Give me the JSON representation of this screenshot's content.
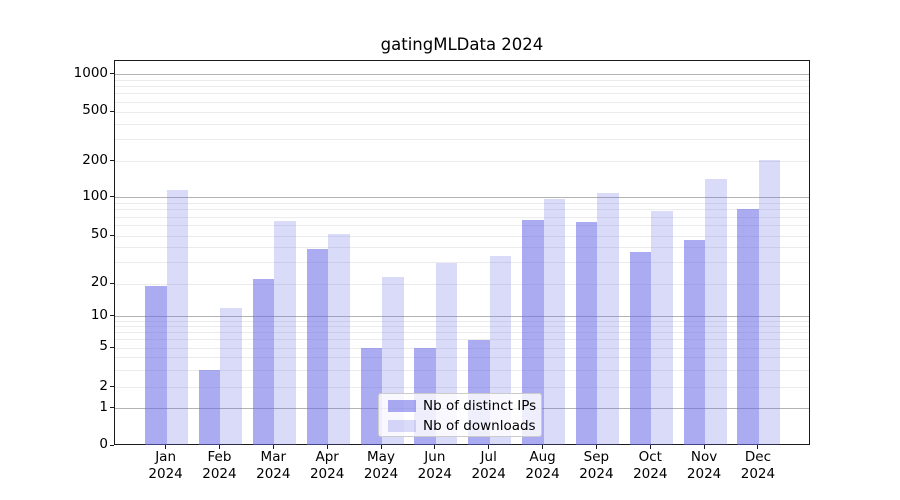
{
  "chart": {
    "title": "gatingMLData 2024"
  },
  "chart_data": {
    "type": "bar",
    "title": "gatingMLData 2024",
    "categories": [
      "Jan",
      "Feb",
      "Mar",
      "Apr",
      "May",
      "Jun",
      "Jul",
      "Aug",
      "Sep",
      "Oct",
      "Nov",
      "Dec"
    ],
    "year_label": "2024",
    "series": [
      {
        "name": "Nb of distinct IPs",
        "values": [
          19,
          3,
          22,
          39,
          5,
          5,
          6,
          67,
          64,
          37,
          46,
          82
        ],
        "color": "#6666e6",
        "alpha": 0.55
      },
      {
        "name": "Nb of downloads",
        "values": [
          115,
          12,
          65,
          52,
          23,
          30,
          34,
          97,
          110,
          79,
          142,
          205
        ],
        "color": "#6666e6",
        "alpha": 0.24
      }
    ],
    "yscale": "symlog",
    "y_ticks": [
      0,
      1,
      2,
      5,
      10,
      20,
      50,
      100,
      200,
      500,
      1000
    ],
    "ylim": [
      0,
      1150
    ],
    "xlabel": "",
    "ylabel": "",
    "grid": "horizontal, major and minor",
    "legend_position": "lower center",
    "colors": {
      "major_gridline": "#b3b3b3",
      "minor_gridline": "#ebebeb",
      "axis": "#1a1a1a",
      "background": "#ffffff"
    }
  }
}
